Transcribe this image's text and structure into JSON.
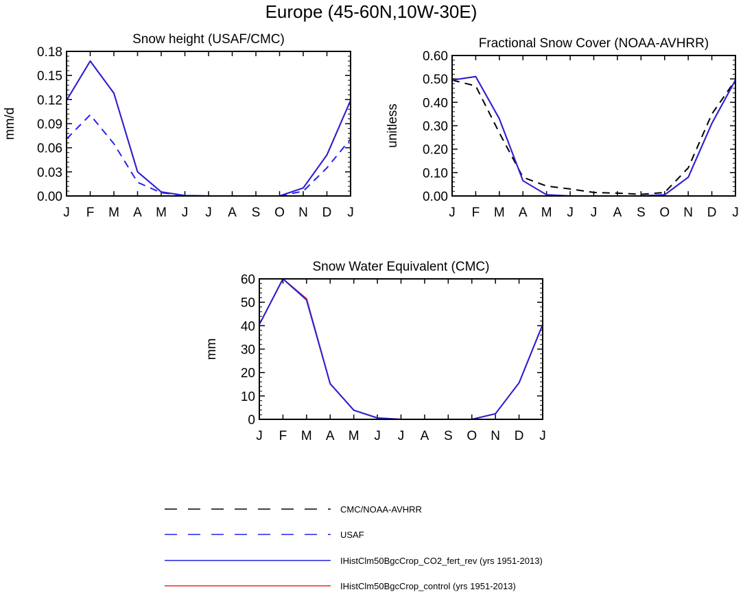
{
  "figure": {
    "title": "Europe (45-60N,10W-30E)",
    "months": [
      "J",
      "F",
      "M",
      "A",
      "M",
      "J",
      "J",
      "A",
      "S",
      "O",
      "N",
      "D",
      "J"
    ]
  },
  "legend": {
    "entries": [
      {
        "label": "CMC/NOAA-AVHRR",
        "color": "#000000",
        "dashed": true
      },
      {
        "label": "USAF",
        "color": "#2222ee",
        "dashed": true
      },
      {
        "label": "IHistClm50BgcCrop_CO2_fert_rev (yrs 1951-2013)",
        "color": "#2222dd",
        "dashed": false
      },
      {
        "label": "IHistClm50BgcCrop_control (yrs 1951-2013)",
        "color": "#ee2222",
        "dashed": false
      }
    ]
  },
  "chart_data": [
    {
      "type": "line",
      "title": "Snow height (USAF/CMC)",
      "ylabel": "mm/d",
      "xlabel": "",
      "x": [
        "J",
        "F",
        "M",
        "A",
        "M",
        "J",
        "J",
        "A",
        "S",
        "O",
        "N",
        "D",
        "J"
      ],
      "ylim": [
        0,
        0.18
      ],
      "yticks": [
        0,
        0.03,
        0.06,
        0.09,
        0.12,
        0.15,
        0.18
      ],
      "ytick_labels": [
        "0.00",
        "0.03",
        "0.06",
        "0.09",
        "0.12",
        "0.15",
        "0.18"
      ],
      "series": [
        {
          "ref": 0,
          "values": [
            0,
            0,
            0,
            0,
            0,
            0,
            0,
            0,
            0,
            0,
            0,
            0,
            0
          ]
        },
        {
          "ref": 1,
          "values": [
            0.071,
            0.101,
            0.065,
            0.017,
            0.004,
            0.0005,
            0,
            0,
            0,
            0,
            0.006,
            0.035,
            0.071
          ]
        },
        {
          "ref": 3,
          "values": [
            0.119,
            0.168,
            0.128,
            0.03,
            0.005,
            0.0005,
            0,
            0,
            0,
            0,
            0.01,
            0.051,
            0.119
          ]
        },
        {
          "ref": 2,
          "values": [
            0.119,
            0.168,
            0.128,
            0.03,
            0.005,
            0.0005,
            0,
            0,
            0,
            0,
            0.01,
            0.051,
            0.119
          ]
        }
      ]
    },
    {
      "type": "line",
      "title": "Fractional Snow Cover (NOAA-AVHRR)",
      "ylabel": "unitless",
      "xlabel": "",
      "x": [
        "J",
        "F",
        "M",
        "A",
        "M",
        "J",
        "J",
        "A",
        "S",
        "O",
        "N",
        "D",
        "J"
      ],
      "ylim": [
        0,
        0.6
      ],
      "yticks": [
        0,
        0.1,
        0.2,
        0.3,
        0.4,
        0.5,
        0.6
      ],
      "ytick_labels": [
        "0.00",
        "0.10",
        "0.20",
        "0.30",
        "0.40",
        "0.50",
        "0.60"
      ],
      "series": [
        {
          "ref": 0,
          "values": [
            0.495,
            0.47,
            0.27,
            0.08,
            0.042,
            0.03,
            0.015,
            0.012,
            0.007,
            0.015,
            0.12,
            0.35,
            0.495
          ]
        },
        {
          "ref": 3,
          "values": [
            0.495,
            0.51,
            0.33,
            0.065,
            0.005,
            0,
            0,
            0,
            0,
            0.005,
            0.08,
            0.31,
            0.495
          ]
        },
        {
          "ref": 2,
          "values": [
            0.495,
            0.51,
            0.33,
            0.065,
            0.005,
            0,
            0,
            0,
            0,
            0.005,
            0.08,
            0.31,
            0.495
          ]
        }
      ]
    },
    {
      "type": "line",
      "title": "Snow Water Equivalent (CMC)",
      "ylabel": "mm",
      "xlabel": "",
      "x": [
        "J",
        "F",
        "M",
        "A",
        "M",
        "J",
        "J",
        "A",
        "S",
        "O",
        "N",
        "D",
        "J"
      ],
      "ylim": [
        0,
        60
      ],
      "yticks": [
        0,
        10,
        20,
        30,
        40,
        50,
        60
      ],
      "ytick_labels": [
        "0",
        "10",
        "20",
        "30",
        "40",
        "50",
        "60"
      ],
      "series": [
        {
          "ref": 0,
          "values": [
            0,
            0,
            0,
            0,
            0,
            0,
            0,
            0,
            0,
            0,
            0,
            0,
            0
          ]
        },
        {
          "ref": 3,
          "values": [
            40.5,
            60,
            51.5,
            15.2,
            3.9,
            0.6,
            0,
            0,
            0,
            0,
            2.4,
            15.6,
            40.5
          ]
        },
        {
          "ref": 2,
          "values": [
            40.5,
            60,
            51,
            15.2,
            3.9,
            0.6,
            0,
            0,
            0,
            0,
            2.4,
            15.6,
            40.5
          ]
        }
      ]
    }
  ]
}
